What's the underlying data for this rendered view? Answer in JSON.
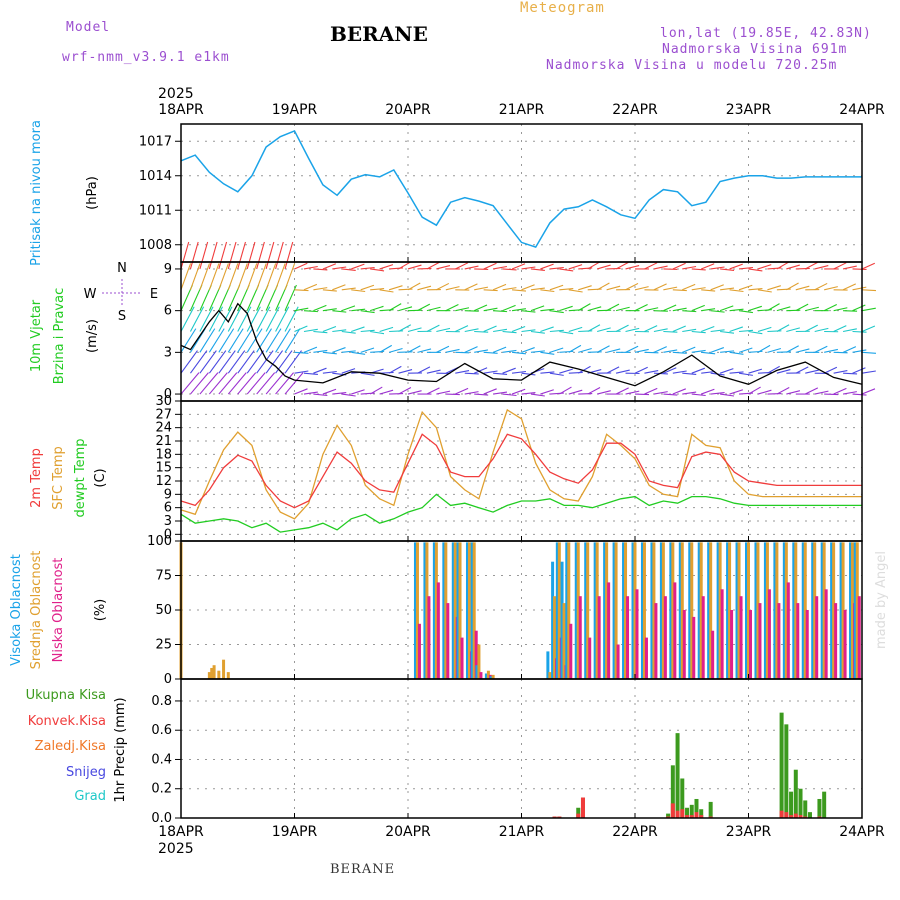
{
  "header": {
    "model_label": "Model",
    "model_name": "wrf-nmm_v3.9.1 e1km",
    "station": "BERANE",
    "product": "Meteogram",
    "lonlat": "lon,lat (19.85E, 42.83N)",
    "elevation": "Nadmorska Visina 691m",
    "model_elevation": "Nadmorska Visina u modelu 720.25m",
    "footer_station": "BERANE",
    "watermark": "made by Angel"
  },
  "colors": {
    "pressure": "#1aa3e8",
    "wind_speed": "#000000",
    "t2m": "#f03c3c",
    "sfc": "#e0a030",
    "dew": "#22cc22",
    "high_cloud": "#1aa3e8",
    "mid_cloud": "#e0a030",
    "low_cloud": "#e0208a",
    "total_precip": "#3c9a1e",
    "conv_precip": "#f03c3c",
    "frz_precip": "#f07828",
    "snow": "#4848e0",
    "hail": "#1ec8c8"
  },
  "chart_data": [
    {
      "type": "line",
      "panel": "pressure",
      "title": "Pritisak na nivou mora",
      "ylabel": "(hPa)",
      "ylim": [
        1006.5,
        1018.5
      ],
      "yticks": [
        1008,
        1011,
        1014,
        1017
      ],
      "x": [
        0,
        3,
        6,
        9,
        12,
        15,
        18,
        21,
        24,
        27,
        30,
        33,
        36,
        39,
        42,
        45,
        48,
        51,
        54,
        57,
        60,
        63,
        66,
        69,
        72,
        75,
        78,
        81,
        84,
        87,
        90,
        93,
        96,
        99,
        102,
        105,
        108,
        111,
        114,
        117,
        120,
        123,
        126,
        129,
        132,
        135,
        138,
        141,
        144
      ],
      "series": [
        {
          "name": "Pritisak na nivou mora",
          "values": [
            1015.3,
            1015.8,
            1014.3,
            1013.3,
            1012.6,
            1014.0,
            1016.5,
            1017.4,
            1017.9,
            1015.5,
            1013.2,
            1012.3,
            1013.7,
            1014.1,
            1013.9,
            1014.5,
            1012.5,
            1010.4,
            1009.7,
            1011.7,
            1012.1,
            1011.8,
            1011.4,
            1009.8,
            1008.2,
            1007.8,
            1009.9,
            1011.1,
            1011.3,
            1011.9,
            1011.3,
            1010.6,
            1010.3,
            1011.9,
            1012.8,
            1012.6,
            1011.4,
            1011.7,
            1013.5,
            1013.8,
            1014.0,
            1014.0,
            1013.8,
            1013.8,
            1013.9,
            1013.9,
            1013.9,
            1013.9,
            1013.9
          ]
        }
      ],
      "grid": true
    },
    {
      "type": "line",
      "panel": "wind",
      "title": "10m Vjetar Brzina i Pravac",
      "ylabel": "(m/s)",
      "ylim": [
        -0.5,
        9.5
      ],
      "yticks": [
        0,
        3,
        6,
        9
      ],
      "compass": [
        "N",
        "S",
        "W",
        "E"
      ],
      "x": [
        0,
        2,
        4,
        6,
        8,
        10,
        12,
        14,
        16,
        18,
        20,
        22,
        24,
        30,
        36,
        42,
        48,
        54,
        60,
        66,
        72,
        78,
        84,
        90,
        96,
        102,
        108,
        114,
        120,
        126,
        132,
        138,
        144
      ],
      "series": [
        {
          "name": "10m Vjetar Brzina",
          "values": [
            3.5,
            3.2,
            4.2,
            5.2,
            6.0,
            5.2,
            6.5,
            5.8,
            3.8,
            2.5,
            2.0,
            1.3,
            1.0,
            0.8,
            1.6,
            1.5,
            1.0,
            0.9,
            2.2,
            1.1,
            1.0,
            2.3,
            1.8,
            1.2,
            0.6,
            1.6,
            2.8,
            1.3,
            0.7,
            1.7,
            2.3,
            1.2,
            0.7
          ]
        }
      ],
      "grid": true
    },
    {
      "type": "line",
      "panel": "temperature",
      "title": "2m Temp / SFC Temp / dewpt Temp",
      "ylabel": "(C)",
      "ylim": [
        -1.5,
        30
      ],
      "yticks": [
        0,
        3,
        6,
        9,
        12,
        15,
        18,
        21,
        24,
        27,
        30
      ],
      "x": [
        0,
        3,
        6,
        9,
        12,
        15,
        18,
        21,
        24,
        27,
        30,
        33,
        36,
        39,
        42,
        45,
        48,
        51,
        54,
        57,
        60,
        63,
        66,
        69,
        72,
        75,
        78,
        81,
        84,
        87,
        90,
        93,
        96,
        99,
        102,
        105,
        108,
        111,
        114,
        117,
        120,
        123,
        126,
        129,
        132,
        135,
        138,
        141,
        144
      ],
      "series": [
        {
          "name": "2m Temp",
          "values": [
            7.5,
            6.5,
            10.0,
            15.0,
            17.8,
            16.5,
            11.0,
            7.5,
            6.0,
            7.5,
            13.0,
            18.5,
            16.0,
            12.0,
            10.0,
            9.5,
            16.0,
            22.5,
            20.0,
            14.0,
            13.0,
            13.0,
            17.0,
            22.5,
            21.5,
            18.0,
            14.0,
            12.5,
            11.5,
            14.5,
            20.5,
            20.5,
            18.0,
            12.0,
            11.0,
            10.5,
            17.5,
            18.5,
            18.0,
            14.0,
            12.0,
            11.5,
            11.0,
            11.0,
            11.0,
            11.0,
            11.0,
            11.0,
            11.0
          ]
        },
        {
          "name": "SFC Temp",
          "values": [
            5.5,
            4.5,
            12.0,
            19.0,
            23.0,
            20.0,
            10.0,
            5.0,
            3.5,
            7.0,
            18.0,
            24.5,
            20.0,
            11.0,
            8.0,
            6.5,
            18.0,
            27.5,
            24.0,
            13.0,
            10.0,
            8.0,
            18.5,
            28.0,
            26.0,
            16.0,
            10.0,
            8.0,
            7.5,
            13.0,
            22.5,
            20.0,
            17.0,
            11.0,
            9.0,
            8.5,
            22.5,
            20.0,
            19.5,
            12.0,
            9.0,
            8.5,
            8.5,
            8.5,
            8.5,
            8.5,
            8.5,
            8.5,
            8.5
          ]
        },
        {
          "name": "dewpt Temp",
          "values": [
            4.5,
            2.5,
            3.0,
            3.5,
            3.0,
            1.5,
            2.5,
            0.5,
            1.0,
            1.5,
            2.5,
            1.0,
            3.5,
            4.5,
            2.5,
            3.5,
            5.0,
            6.0,
            9.0,
            6.5,
            7.0,
            6.0,
            5.0,
            6.5,
            7.5,
            7.5,
            8.0,
            6.5,
            6.5,
            6.0,
            7.0,
            8.0,
            8.5,
            6.5,
            7.5,
            7.0,
            8.5,
            8.5,
            8.0,
            7.0,
            6.5,
            6.5,
            6.5,
            6.5,
            6.5,
            6.5,
            6.5,
            6.5,
            6.5
          ]
        }
      ],
      "grid": true
    },
    {
      "type": "bar",
      "panel": "clouds",
      "title": "Visoka / Srednja / Niska Oblacnost",
      "ylabel": "(%)",
      "ylim": [
        0,
        100
      ],
      "yticks": [
        0,
        25,
        50,
        75,
        100
      ],
      "x": [
        0,
        6,
        6.5,
        7,
        8,
        9,
        10,
        50,
        52,
        54,
        56,
        58,
        59,
        61,
        62,
        63,
        65,
        66,
        78,
        79,
        80,
        81,
        82,
        84,
        86,
        88,
        90,
        92,
        94,
        96,
        98,
        100,
        102,
        104,
        106,
        108,
        110,
        112,
        114,
        116,
        118,
        120,
        122,
        124,
        126,
        128,
        130,
        132,
        134,
        136,
        138,
        140,
        142,
        143
      ],
      "series": [
        {
          "name": "Visoka Oblacnost",
          "values": [
            0,
            0,
            0,
            0,
            0,
            0,
            0,
            99,
            99,
            99,
            99,
            99,
            99,
            99,
            99,
            10,
            4,
            2,
            20,
            85,
            99,
            85,
            99,
            99,
            99,
            99,
            99,
            99,
            99,
            99,
            99,
            99,
            99,
            99,
            99,
            99,
            99,
            99,
            99,
            99,
            99,
            99,
            99,
            99,
            99,
            99,
            99,
            99,
            99,
            99,
            99,
            99,
            99,
            99
          ]
        },
        {
          "name": "Srednja Oblacnost",
          "values": [
            99,
            5,
            8,
            10,
            6,
            14,
            5,
            99,
            99,
            99,
            99,
            99,
            99,
            99,
            99,
            25,
            6,
            3,
            5,
            60,
            99,
            55,
            99,
            99,
            99,
            99,
            99,
            99,
            99,
            99,
            99,
            99,
            99,
            99,
            99,
            99,
            99,
            99,
            99,
            99,
            99,
            99,
            99,
            99,
            99,
            99,
            99,
            99,
            99,
            99,
            99,
            99,
            99,
            99
          ]
        },
        {
          "name": "Niska Oblacnost",
          "values": [
            0,
            0,
            0,
            0,
            0,
            0,
            0,
            40,
            60,
            70,
            55,
            45,
            30,
            20,
            35,
            5,
            3,
            0,
            0,
            15,
            30,
            10,
            40,
            60,
            30,
            60,
            70,
            25,
            60,
            65,
            30,
            55,
            60,
            70,
            50,
            45,
            60,
            35,
            65,
            50,
            60,
            50,
            55,
            65,
            55,
            70,
            55,
            50,
            60,
            65,
            55,
            50,
            55,
            60
          ]
        }
      ],
      "grid": true
    },
    {
      "type": "bar",
      "panel": "precip",
      "title": "1hr Precip",
      "ylabel": "(mm)",
      "ylim": [
        0,
        0.95
      ],
      "yticks": [
        0.0,
        0.2,
        0.4,
        0.6,
        0.8
      ],
      "x": [
        79,
        80,
        84,
        85,
        103,
        104,
        105,
        106,
        107,
        108,
        109,
        110,
        112,
        127,
        128,
        129,
        130,
        131,
        132,
        133,
        135,
        136
      ],
      "series": [
        {
          "name": "Ukupna Kisa",
          "values": [
            0.01,
            0.01,
            0.07,
            0.14,
            0.03,
            0.36,
            0.58,
            0.27,
            0.07,
            0.09,
            0.13,
            0.06,
            0.11,
            0.72,
            0.64,
            0.18,
            0.33,
            0.2,
            0.12,
            0.04,
            0.13,
            0.18
          ]
        },
        {
          "name": "Konvek.Kisa",
          "values": [
            0.01,
            0.01,
            0.03,
            0.14,
            0.01,
            0.1,
            0.05,
            0.06,
            0.02,
            0.02,
            0.04,
            0.02,
            0.01,
            0.05,
            0.04,
            0.02,
            0.03,
            0.02,
            0.01,
            0.0,
            0.01,
            0.0
          ]
        }
      ],
      "legend": [
        "Ukupna Kisa",
        "Konvek.Kisa",
        "Zaledj.Kisa",
        "Snijeg",
        "Grad"
      ],
      "grid": true
    }
  ],
  "time_axis": {
    "year": "2025",
    "labels": [
      "18APR",
      "19APR",
      "20APR",
      "21APR",
      "22APR",
      "23APR",
      "24APR"
    ],
    "hours": [
      0,
      24,
      48,
      72,
      96,
      120,
      144
    ]
  }
}
